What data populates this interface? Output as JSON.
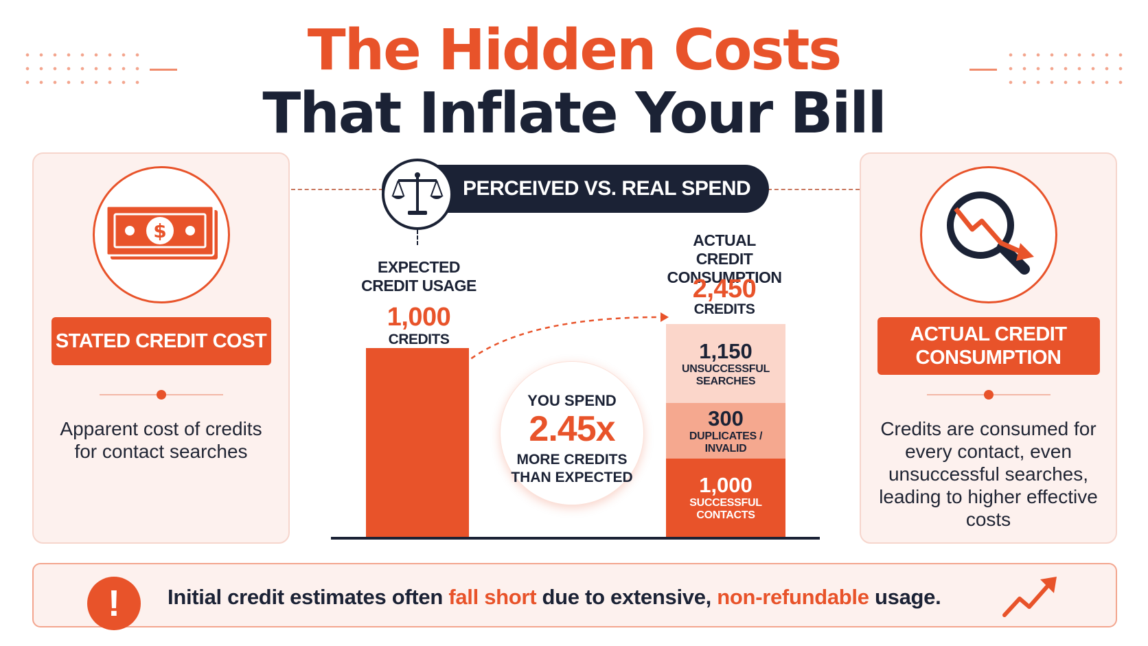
{
  "header": {
    "title_line1": "The Hidden Costs",
    "title_line2": "That Inflate Your Bill"
  },
  "left_card": {
    "icon": "dollar-bill-icon",
    "button_label": "STATED CREDIT COST",
    "description": "Apparent cost of credits for contact searches"
  },
  "right_card": {
    "icon": "magnifier-decline-icon",
    "button_label_line1": "ACTUAL CREDIT",
    "button_label_line2": "CONSUMPTION",
    "description": "Credits are consumed for every contact, even unsuccessful searches, leading to higher effective costs"
  },
  "center": {
    "icon": "scale-icon",
    "pill_label": "PERCEIVED VS. REAL SPEND",
    "multiplier": {
      "top": "YOU SPEND",
      "value": "2.45x",
      "bottom_line1": "MORE CREDITS",
      "bottom_line2": "THAN EXPECTED"
    }
  },
  "chart_data": {
    "type": "bar",
    "categories": [
      "EXPECTED CREDIT USAGE",
      "ACTUAL CREDIT CONSUMPTION"
    ],
    "expected": {
      "caption_line1": "EXPECTED",
      "caption_line2": "CREDIT USAGE",
      "value": 1000,
      "value_label": "1,000",
      "unit": "CREDITS"
    },
    "actual": {
      "caption_line1": "ACTUAL",
      "caption_line2": "CREDIT CONSUMPTION",
      "value": 2450,
      "value_label": "2,450",
      "unit": "CREDITS",
      "segments": [
        {
          "value": 1000,
          "value_label": "1,000",
          "label_line1": "SUCCESSFUL",
          "label_line2": "CONTACTS",
          "color": "#e8532a"
        },
        {
          "value": 300,
          "value_label": "300",
          "label_line1": "DUPLICATES /",
          "label_line2": "INVALID",
          "color": "#f5a88f"
        },
        {
          "value": 1150,
          "value_label": "1,150",
          "label_line1": "UNSUCCESSFUL",
          "label_line2": "SEARCHES",
          "color": "#fbd6ca"
        }
      ]
    },
    "colors": {
      "primary": "#e8532a",
      "navy": "#1b2235"
    }
  },
  "banner": {
    "icon": "exclamation-icon",
    "text_part1": "Initial credit estimates often ",
    "highlight1": "fall short",
    "text_part2": " due to extensive, ",
    "highlight2": "non-refundable",
    "text_part3": " usage.",
    "trend_icon": "trend-up-icon"
  }
}
